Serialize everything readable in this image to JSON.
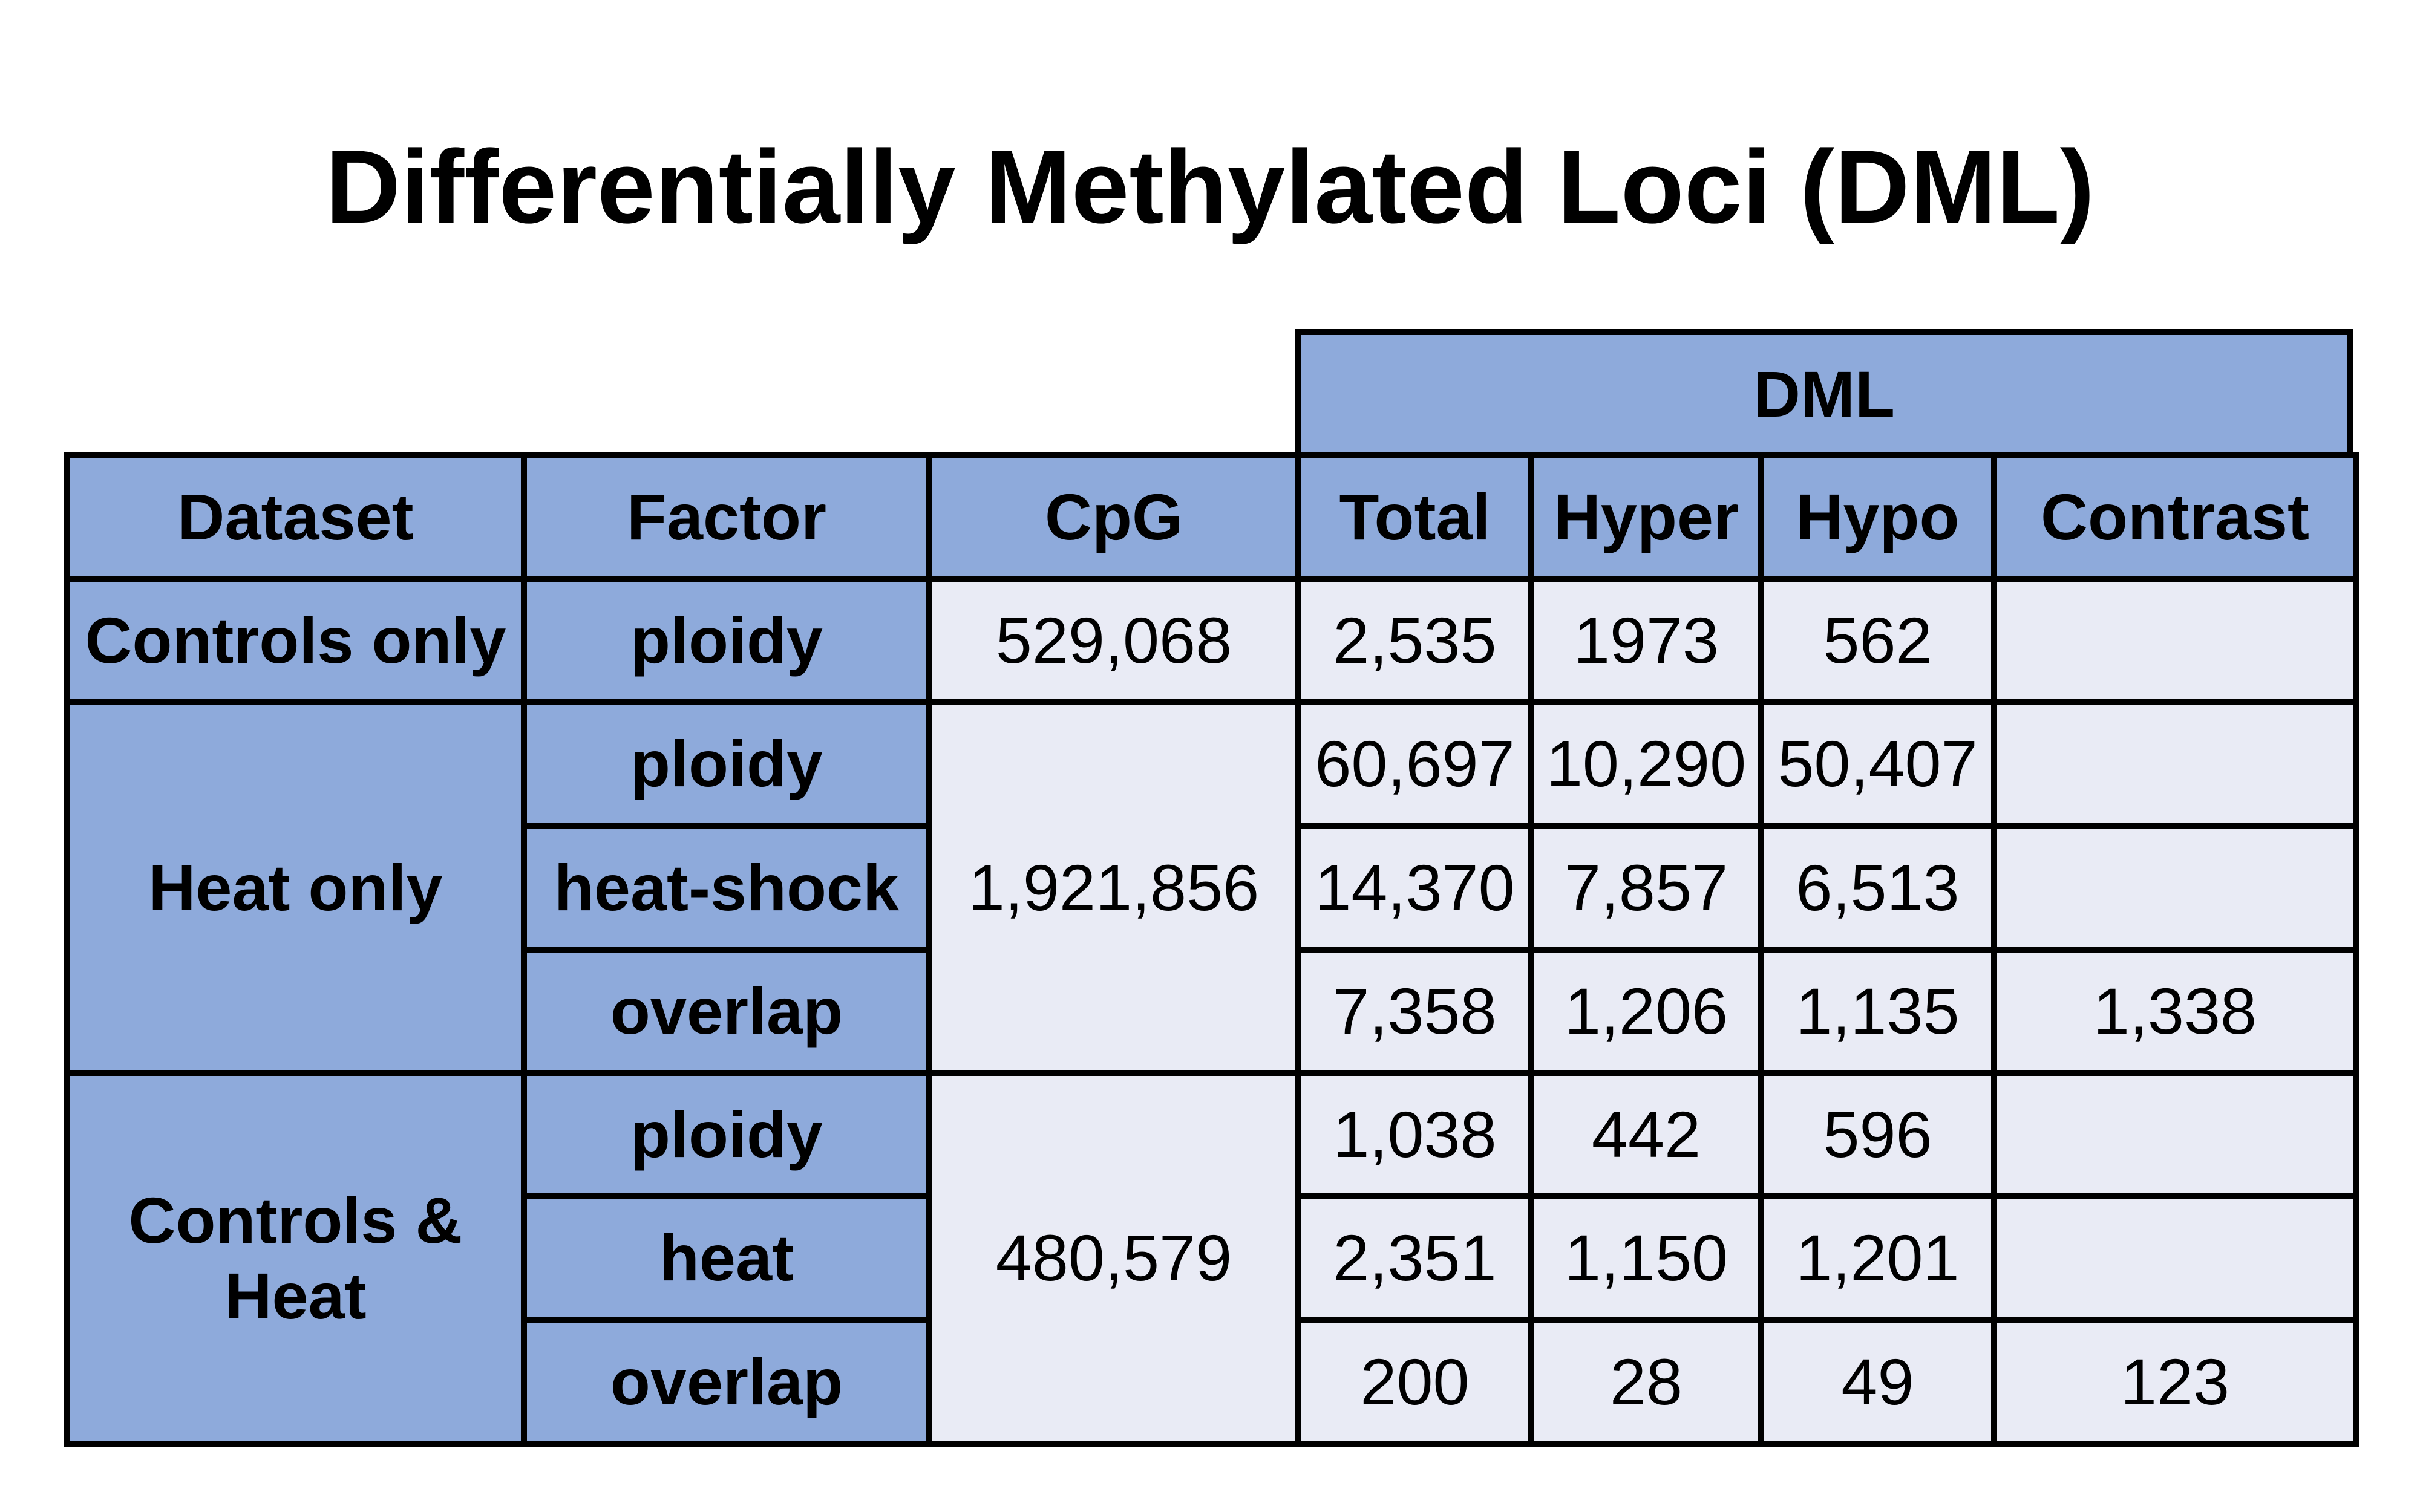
{
  "title": "Differentially Methylated Loci (DML)",
  "group_header": "DML",
  "columns": [
    "Dataset",
    "Factor",
    "CpG",
    "Total",
    "Hyper",
    "Hypo",
    "Contrast"
  ],
  "groups": [
    {
      "dataset": "Controls only",
      "cpg": "529,068",
      "rows": [
        {
          "factor": "ploidy",
          "total": "2,535",
          "hyper": "1973",
          "hypo": "562",
          "contrast": ""
        }
      ]
    },
    {
      "dataset": "Heat only",
      "cpg": "1,921,856",
      "rows": [
        {
          "factor": "ploidy",
          "total": "60,697",
          "hyper": "10,290",
          "hypo": "50,407",
          "contrast": ""
        },
        {
          "factor": "heat-shock",
          "total": "14,370",
          "hyper": "7,857",
          "hypo": "6,513",
          "contrast": ""
        },
        {
          "factor": "overlap",
          "total": "7,358",
          "hyper": "1,206",
          "hypo": "1,135",
          "contrast": "1,338"
        }
      ]
    },
    {
      "dataset": "Controls & Heat",
      "cpg": "480,579",
      "rows": [
        {
          "factor": "ploidy",
          "total": "1,038",
          "hyper": "442",
          "hypo": "596",
          "contrast": ""
        },
        {
          "factor": "heat",
          "total": "2,351",
          "hyper": "1,150",
          "hypo": "1,201",
          "contrast": ""
        },
        {
          "factor": "overlap",
          "total": "200",
          "hyper": "28",
          "hypo": "49",
          "contrast": "123"
        }
      ]
    }
  ],
  "colors": {
    "header_fill": "#8eaadb",
    "value_fill": "#e9ebf5",
    "border": "#000000"
  }
}
